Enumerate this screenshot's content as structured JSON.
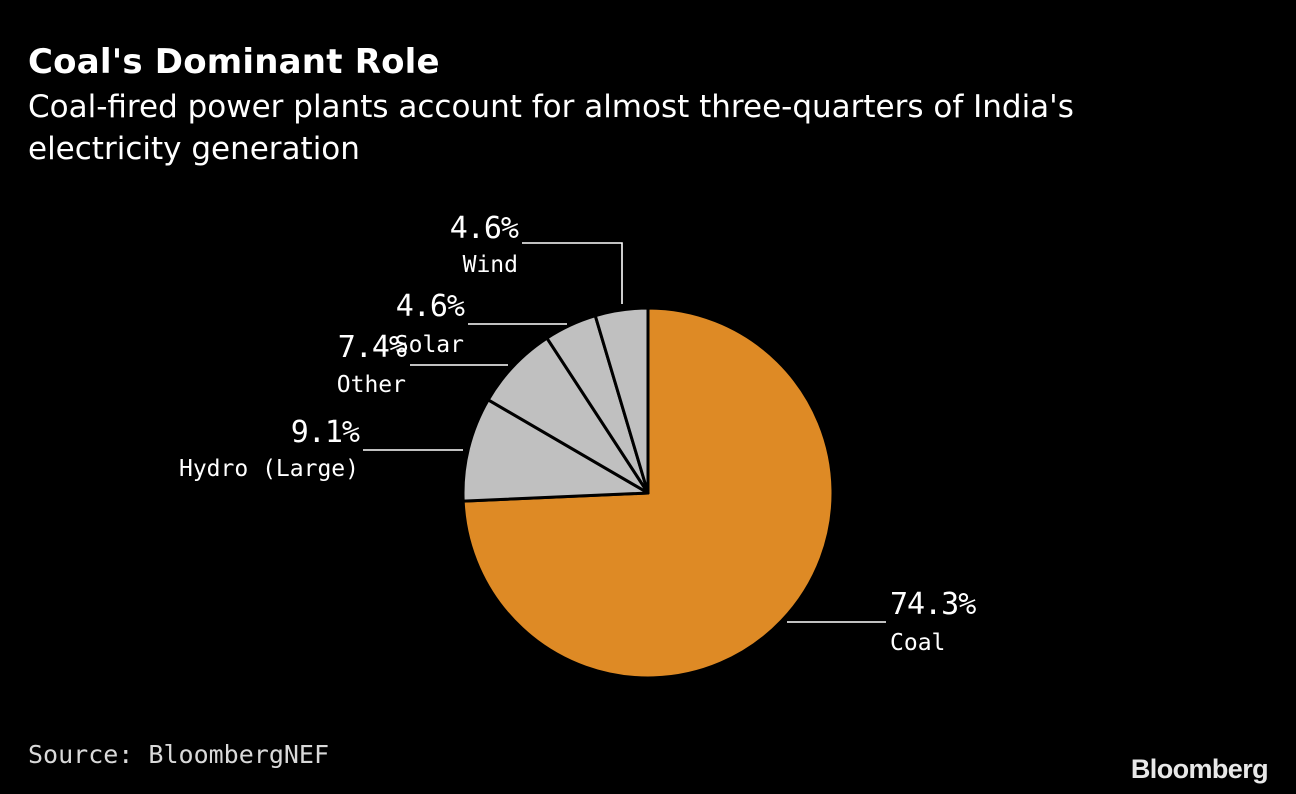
{
  "chart_data": {
    "type": "pie",
    "title": "Coal's Dominant Role",
    "subtitle": "Coal-fired power plants account for almost three-quarters of India's electricity generation",
    "unit": "%",
    "slices": [
      {
        "label": "Coal",
        "value": 74.3,
        "value_label": "74.3%",
        "color": "#DE8A25"
      },
      {
        "label": "Hydro (Large)",
        "value": 9.1,
        "value_label": "9.1%",
        "color": "#C0C0C0"
      },
      {
        "label": "Other",
        "value": 7.4,
        "value_label": "7.4%",
        "color": "#C0C0C0"
      },
      {
        "label": "Solar",
        "value": 4.6,
        "value_label": "4.6%",
        "color": "#C0C0C0"
      },
      {
        "label": "Wind",
        "value": 4.6,
        "value_label": "4.6%",
        "color": "#C0C0C0"
      }
    ],
    "source": "Source: BloombergNEF"
  },
  "branding": {
    "logo_text": "Bloomberg"
  },
  "colors": {
    "background": "#000000",
    "text": "#FFFFFF",
    "slice_border": "#000000",
    "leader_line": "#FFFFFF"
  }
}
